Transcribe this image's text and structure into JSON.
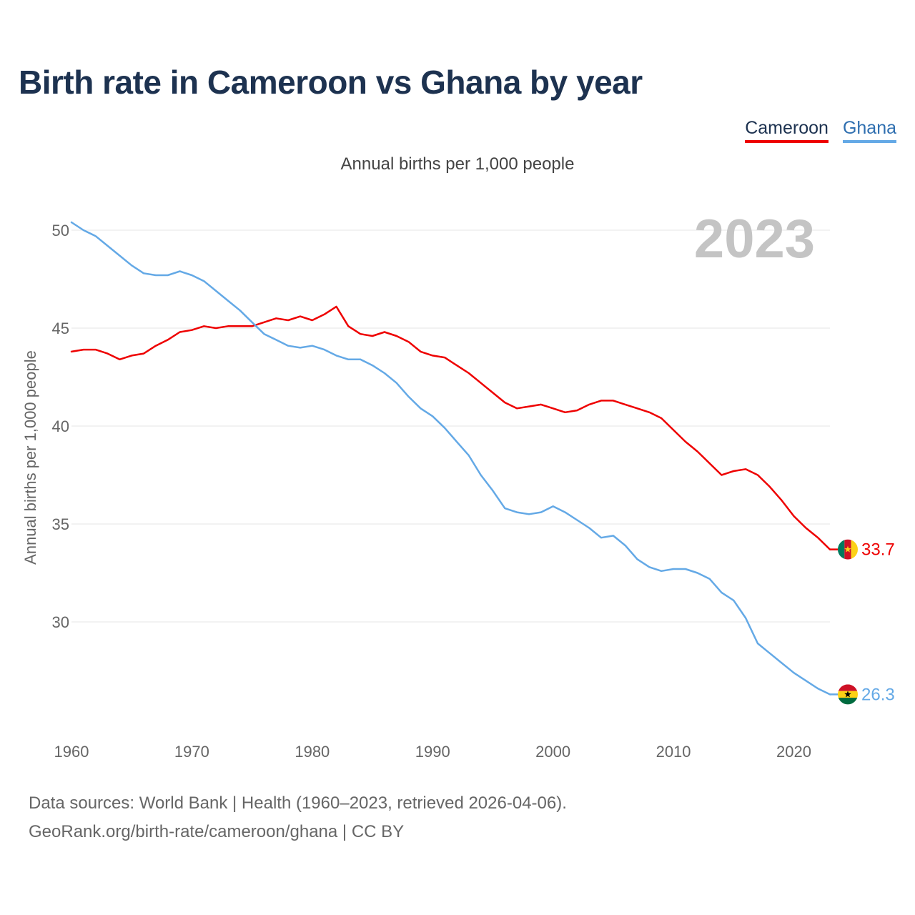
{
  "title": "Birth rate in Cameroon vs Ghana by year",
  "subtitle": "Annual births per 1,000 people",
  "legend": {
    "cameroon": "Cameroon",
    "ghana": "Ghana"
  },
  "footer": {
    "line1": "Data sources: World Bank | Health (1960–2023, retrieved 2026-04-06).",
    "line2": "GeoRank.org/birth-rate/cameroon/ghana | CC BY"
  },
  "chart_data": {
    "type": "line",
    "title": "Birth rate in Cameroon vs Ghana by year",
    "ylabel": "Annual births per 1,000 people",
    "xlabel": "",
    "year_label": "2023",
    "xlim": [
      1960,
      2023
    ],
    "ylim": [
      25,
      51
    ],
    "yticks": [
      30,
      35,
      40,
      45,
      50
    ],
    "xticks": [
      1960,
      1970,
      1980,
      1990,
      2000,
      2010,
      2020
    ],
    "x": [
      1960,
      1961,
      1962,
      1963,
      1964,
      1965,
      1966,
      1967,
      1968,
      1969,
      1970,
      1971,
      1972,
      1973,
      1974,
      1975,
      1976,
      1977,
      1978,
      1979,
      1980,
      1981,
      1982,
      1983,
      1984,
      1985,
      1986,
      1987,
      1988,
      1989,
      1990,
      1991,
      1992,
      1993,
      1994,
      1995,
      1996,
      1997,
      1998,
      1999,
      2000,
      2001,
      2002,
      2003,
      2004,
      2005,
      2006,
      2007,
      2008,
      2009,
      2010,
      2011,
      2012,
      2013,
      2014,
      2015,
      2016,
      2017,
      2018,
      2019,
      2020,
      2021,
      2022,
      2023
    ],
    "series": [
      {
        "name": "Cameroon",
        "color": "#ee0000",
        "end_label": "33.7",
        "values": [
          43.8,
          43.9,
          43.9,
          43.7,
          43.4,
          43.6,
          43.7,
          44.1,
          44.4,
          44.8,
          44.9,
          45.1,
          45.0,
          45.1,
          45.1,
          45.1,
          45.3,
          45.5,
          45.4,
          45.6,
          45.4,
          45.7,
          46.1,
          45.1,
          44.7,
          44.6,
          44.8,
          44.6,
          44.3,
          43.8,
          43.6,
          43.5,
          43.1,
          42.7,
          42.2,
          41.7,
          41.2,
          40.9,
          41.0,
          41.1,
          40.9,
          40.7,
          40.8,
          41.1,
          41.3,
          41.3,
          41.1,
          40.9,
          40.7,
          40.4,
          39.8,
          39.2,
          38.7,
          38.1,
          37.5,
          37.7,
          37.8,
          37.5,
          36.9,
          36.2,
          35.4,
          34.8,
          34.3,
          33.7
        ]
      },
      {
        "name": "Ghana",
        "color": "#64a9e6",
        "end_label": "26.3",
        "values": [
          50.4,
          50.0,
          49.7,
          49.2,
          48.7,
          48.2,
          47.8,
          47.7,
          47.7,
          47.9,
          47.7,
          47.4,
          46.9,
          46.4,
          45.9,
          45.3,
          44.7,
          44.4,
          44.1,
          44.0,
          44.1,
          43.9,
          43.6,
          43.4,
          43.4,
          43.1,
          42.7,
          42.2,
          41.5,
          40.9,
          40.5,
          39.9,
          39.2,
          38.5,
          37.5,
          36.7,
          35.8,
          35.6,
          35.5,
          35.6,
          35.9,
          35.6,
          35.2,
          34.8,
          34.3,
          34.4,
          33.9,
          33.2,
          32.8,
          32.6,
          32.7,
          32.7,
          32.5,
          32.2,
          31.5,
          31.1,
          30.2,
          28.9,
          28.4,
          27.9,
          27.4,
          27.0,
          26.6,
          26.3
        ]
      }
    ]
  }
}
